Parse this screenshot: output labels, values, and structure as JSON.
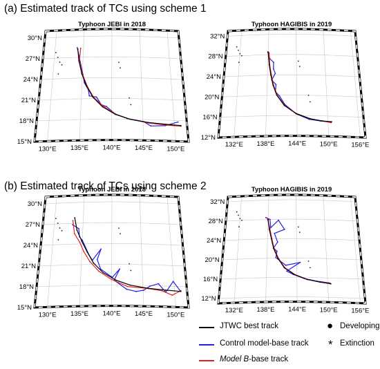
{
  "sections": [
    {
      "title": "(a) Estimated track of TCs using scheme 1"
    },
    {
      "title": "(b) Estimated track of TCs using scheme 2"
    }
  ],
  "panels": [
    {
      "title": "Typhoon JEBI in 2018",
      "lat_labels": [
        "30°N",
        "27°N",
        "24°N",
        "21°N",
        "18°N",
        "15°N"
      ],
      "lon_labels": [
        "130°E",
        "135°E",
        "140°E",
        "145°E",
        "150°E"
      ],
      "tracks": {
        "jtwc": [
          [
            134,
            28.2
          ],
          [
            134.3,
            26.5
          ],
          [
            134.9,
            24.6
          ],
          [
            135.8,
            22.8
          ],
          [
            136.9,
            21.2
          ],
          [
            138.5,
            19.8
          ],
          [
            140.6,
            18.7
          ],
          [
            143,
            18
          ],
          [
            145.8,
            17.6
          ],
          [
            148.6,
            17.4
          ],
          [
            151,
            17.3
          ]
        ],
        "control": [
          [
            133.9,
            28.4
          ],
          [
            134.4,
            26.8
          ],
          [
            135.1,
            24.5
          ],
          [
            135.4,
            23.3
          ],
          [
            136.1,
            22.3
          ],
          [
            136.3,
            21.4
          ],
          [
            137.5,
            21.2
          ],
          [
            138.3,
            20.1
          ],
          [
            139.2,
            19.8
          ],
          [
            140.5,
            18.8
          ],
          [
            142.5,
            18.1
          ],
          [
            145.1,
            17.7
          ],
          [
            146.2,
            17.1
          ],
          [
            148.5,
            17.2
          ],
          [
            150.6,
            17.8
          ]
        ],
        "modelb": [
          [
            134.5,
            28.3
          ],
          [
            134.4,
            26.5
          ],
          [
            135,
            24.6
          ],
          [
            135.9,
            22.8
          ],
          [
            137,
            21.2
          ],
          [
            138.6,
            19.9
          ],
          [
            140.7,
            18.7
          ],
          [
            143,
            18
          ],
          [
            146,
            17.5
          ],
          [
            148.5,
            17.3
          ],
          [
            151,
            17.2
          ]
        ]
      }
    },
    {
      "title": "Typhoon HAGIBIS in 2019",
      "lat_labels": [
        "32°N",
        "28°N",
        "24°N",
        "20°N",
        "16°N",
        "12°N"
      ],
      "lon_labels": [
        "132°E",
        "138°E",
        "144°E",
        "150°E",
        "156°E"
      ],
      "tracks": {
        "jtwc": [
          [
            138,
            28.5
          ],
          [
            138.3,
            26
          ],
          [
            138.7,
            24
          ],
          [
            139.2,
            22
          ],
          [
            140,
            20
          ],
          [
            141.5,
            18
          ],
          [
            143.8,
            16.4
          ],
          [
            146.5,
            15.4
          ],
          [
            148.8,
            15
          ],
          [
            150.7,
            14.9
          ]
        ],
        "control": [
          [
            137.9,
            28.6
          ],
          [
            138.4,
            27.2
          ],
          [
            139.2,
            26.5
          ],
          [
            139.2,
            25.2
          ],
          [
            139.6,
            24.3
          ],
          [
            138.9,
            23
          ],
          [
            139.8,
            22.1
          ],
          [
            139.7,
            20.7
          ],
          [
            140.5,
            19.9
          ],
          [
            141.6,
            18.2
          ],
          [
            143.9,
            16.3
          ],
          [
            146.3,
            15.3
          ],
          [
            148.5,
            15
          ],
          [
            150.5,
            14.8
          ]
        ],
        "modelb": [
          [
            138.2,
            28.4
          ],
          [
            138.4,
            26
          ],
          [
            138.8,
            24
          ],
          [
            139.3,
            22
          ],
          [
            140.1,
            20
          ],
          [
            141.6,
            18
          ],
          [
            143.9,
            16.4
          ],
          [
            146.6,
            15.4
          ],
          [
            149,
            15
          ],
          [
            150.6,
            14.7
          ]
        ]
      }
    },
    {
      "title": "Typhoon JEBI in 2018",
      "lat_labels": [
        "30°N",
        "27°N",
        "24°N",
        "21°N",
        "18°N",
        "15°N"
      ],
      "lon_labels": [
        "130°E",
        "135°E",
        "140°E",
        "145°E",
        "150°E"
      ],
      "tracks": {
        "jtwc": [
          [
            133.5,
            27.8
          ],
          [
            134,
            26
          ],
          [
            134.9,
            24.4
          ],
          [
            135.9,
            22.8
          ],
          [
            137,
            21.2
          ],
          [
            138.6,
            19.8
          ],
          [
            140.7,
            18.7
          ],
          [
            143,
            18
          ],
          [
            145.8,
            17.6
          ],
          [
            148.6,
            17.4
          ],
          [
            151,
            17.3
          ]
        ],
        "control": [
          [
            133.2,
            26.8
          ],
          [
            134.3,
            26.2
          ],
          [
            134.5,
            25
          ],
          [
            135,
            24.5
          ],
          [
            136.2,
            22.4
          ],
          [
            136.8,
            21.6
          ],
          [
            138.2,
            23.2
          ],
          [
            137.6,
            21.7
          ],
          [
            138.2,
            20.3
          ],
          [
            140.1,
            19.1
          ],
          [
            141.3,
            20.3
          ],
          [
            140.4,
            18.7
          ],
          [
            142.4,
            17.4
          ],
          [
            143.9,
            17.1
          ],
          [
            145.1,
            17.3
          ],
          [
            146.1,
            17.9
          ],
          [
            147.5,
            18.3
          ],
          [
            148.6,
            17.1
          ],
          [
            149.9,
            18.7
          ],
          [
            150.9,
            17.4
          ]
        ],
        "modelb": [
          [
            133.2,
            27.4
          ],
          [
            133.6,
            25.5
          ],
          [
            134.6,
            24.2
          ],
          [
            135.3,
            22.9
          ],
          [
            136.4,
            21.4
          ],
          [
            137.9,
            20
          ],
          [
            140,
            18.8
          ],
          [
            142.5,
            17.8
          ],
          [
            145.5,
            17.6
          ],
          [
            148,
            17.3
          ],
          [
            149.6,
            16.7
          ],
          [
            151,
            17.4
          ]
        ]
      }
    },
    {
      "title": "Typhoon HAGIBIS in 2019",
      "lat_labels": [
        "32°N",
        "28°N",
        "24°N",
        "20°N",
        "16°N",
        "12°N"
      ],
      "lon_labels": [
        "132°E",
        "138°E",
        "144°E",
        "150°E",
        "156°E"
      ],
      "tracks": {
        "jtwc": [
          [
            138,
            28
          ],
          [
            138.3,
            26
          ],
          [
            138.8,
            24
          ],
          [
            139.3,
            22
          ],
          [
            140.2,
            20
          ],
          [
            141.5,
            18
          ],
          [
            143.5,
            16.6
          ],
          [
            146,
            15.6
          ],
          [
            148.5,
            15.1
          ],
          [
            150.6,
            14.8
          ]
        ],
        "control": [
          [
            137.5,
            28.4
          ],
          [
            138.4,
            28
          ],
          [
            138.6,
            26.3
          ],
          [
            140.2,
            27.8
          ],
          [
            141.5,
            25.9
          ],
          [
            139.4,
            25.1
          ],
          [
            140.1,
            23.3
          ],
          [
            139.3,
            22.1
          ],
          [
            140,
            21.4
          ],
          [
            139.8,
            20.1
          ],
          [
            141.8,
            18.5
          ],
          [
            144.7,
            19.1
          ],
          [
            142,
            17.3
          ],
          [
            143.3,
            16.6
          ],
          [
            145.4,
            15.8
          ],
          [
            147.8,
            15.3
          ],
          [
            150.3,
            15
          ]
        ],
        "modelb": [
          [
            137.8,
            28.3
          ],
          [
            138.4,
            26.2
          ],
          [
            138.9,
            24
          ],
          [
            139.4,
            22
          ],
          [
            140.3,
            20
          ],
          [
            141.6,
            18
          ],
          [
            143.6,
            16.6
          ],
          [
            146.1,
            15.6
          ],
          [
            148.6,
            15.1
          ],
          [
            150.5,
            14.9
          ]
        ]
      }
    }
  ],
  "legend": {
    "items": [
      {
        "label": "JTWC best track",
        "color": "#000000"
      },
      {
        "label": "Control model-base track",
        "color": "#1f1fe6"
      },
      {
        "label": "-base track",
        "label_italic": "Model B",
        "color": "#e61f1f"
      }
    ],
    "markers": [
      {
        "symbol": "●",
        "label": "Developing"
      },
      {
        "symbol": "*",
        "label": "Extinction"
      }
    ]
  }
}
